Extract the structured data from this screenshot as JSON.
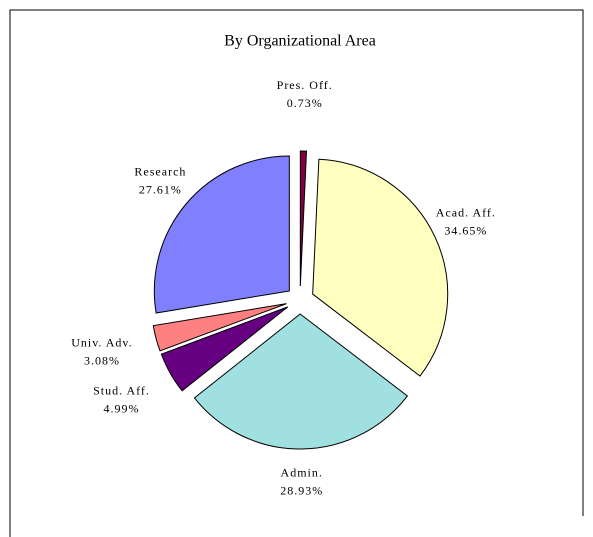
{
  "chart_data": {
    "type": "pie",
    "title": "By Organizational Area",
    "categories": [
      "Pres. Off.",
      "Acad. Aff.",
      "Admin.",
      "Stud. Aff.",
      "Univ. Adv.",
      "Research"
    ],
    "values": [
      0.73,
      34.65,
      28.93,
      4.99,
      3.08,
      27.61
    ],
    "value_labels": [
      "0.73%",
      "34.65%",
      "28.93%",
      "4.99%",
      "3.08%",
      "27.61%"
    ],
    "colors": [
      "#800040",
      "#ffffc0",
      "#a0e0e0",
      "#660080",
      "#ff8080",
      "#8080ff"
    ]
  }
}
